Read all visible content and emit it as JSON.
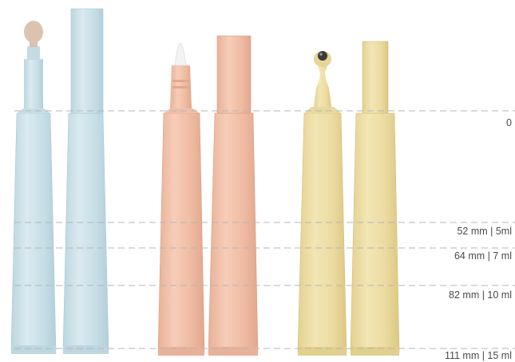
{
  "levels": [
    {
      "label": "0"
    },
    {
      "label": "52 mm | 5ml"
    },
    {
      "label": "64 mm | 7 ml"
    },
    {
      "label": "82 mm | 10 ml"
    },
    {
      "label": "111 mm | 15 ml"
    }
  ],
  "colors": {
    "blue_tube": "#cfe3ea",
    "peach_tube": "#f2c3ac",
    "yellow_tube": "#eedfa8",
    "guide_line": "#b5b5b5",
    "label_text": "#4a4a4a"
  },
  "products": [
    {
      "name": "blue-sponge-applicator-tube",
      "color": "blue_tube",
      "cap": "sponge-tip"
    },
    {
      "name": "blue-capped-tube",
      "color": "blue_tube",
      "cap": "cap"
    },
    {
      "name": "peach-brush-applicator-tube",
      "color": "peach_tube",
      "cap": "brush-tip"
    },
    {
      "name": "peach-capped-tube",
      "color": "peach_tube",
      "cap": "cap"
    },
    {
      "name": "yellow-roller-ball-tube",
      "color": "yellow_tube",
      "cap": "roller-ball"
    },
    {
      "name": "yellow-capped-tube",
      "color": "yellow_tube",
      "cap": "cap"
    }
  ]
}
